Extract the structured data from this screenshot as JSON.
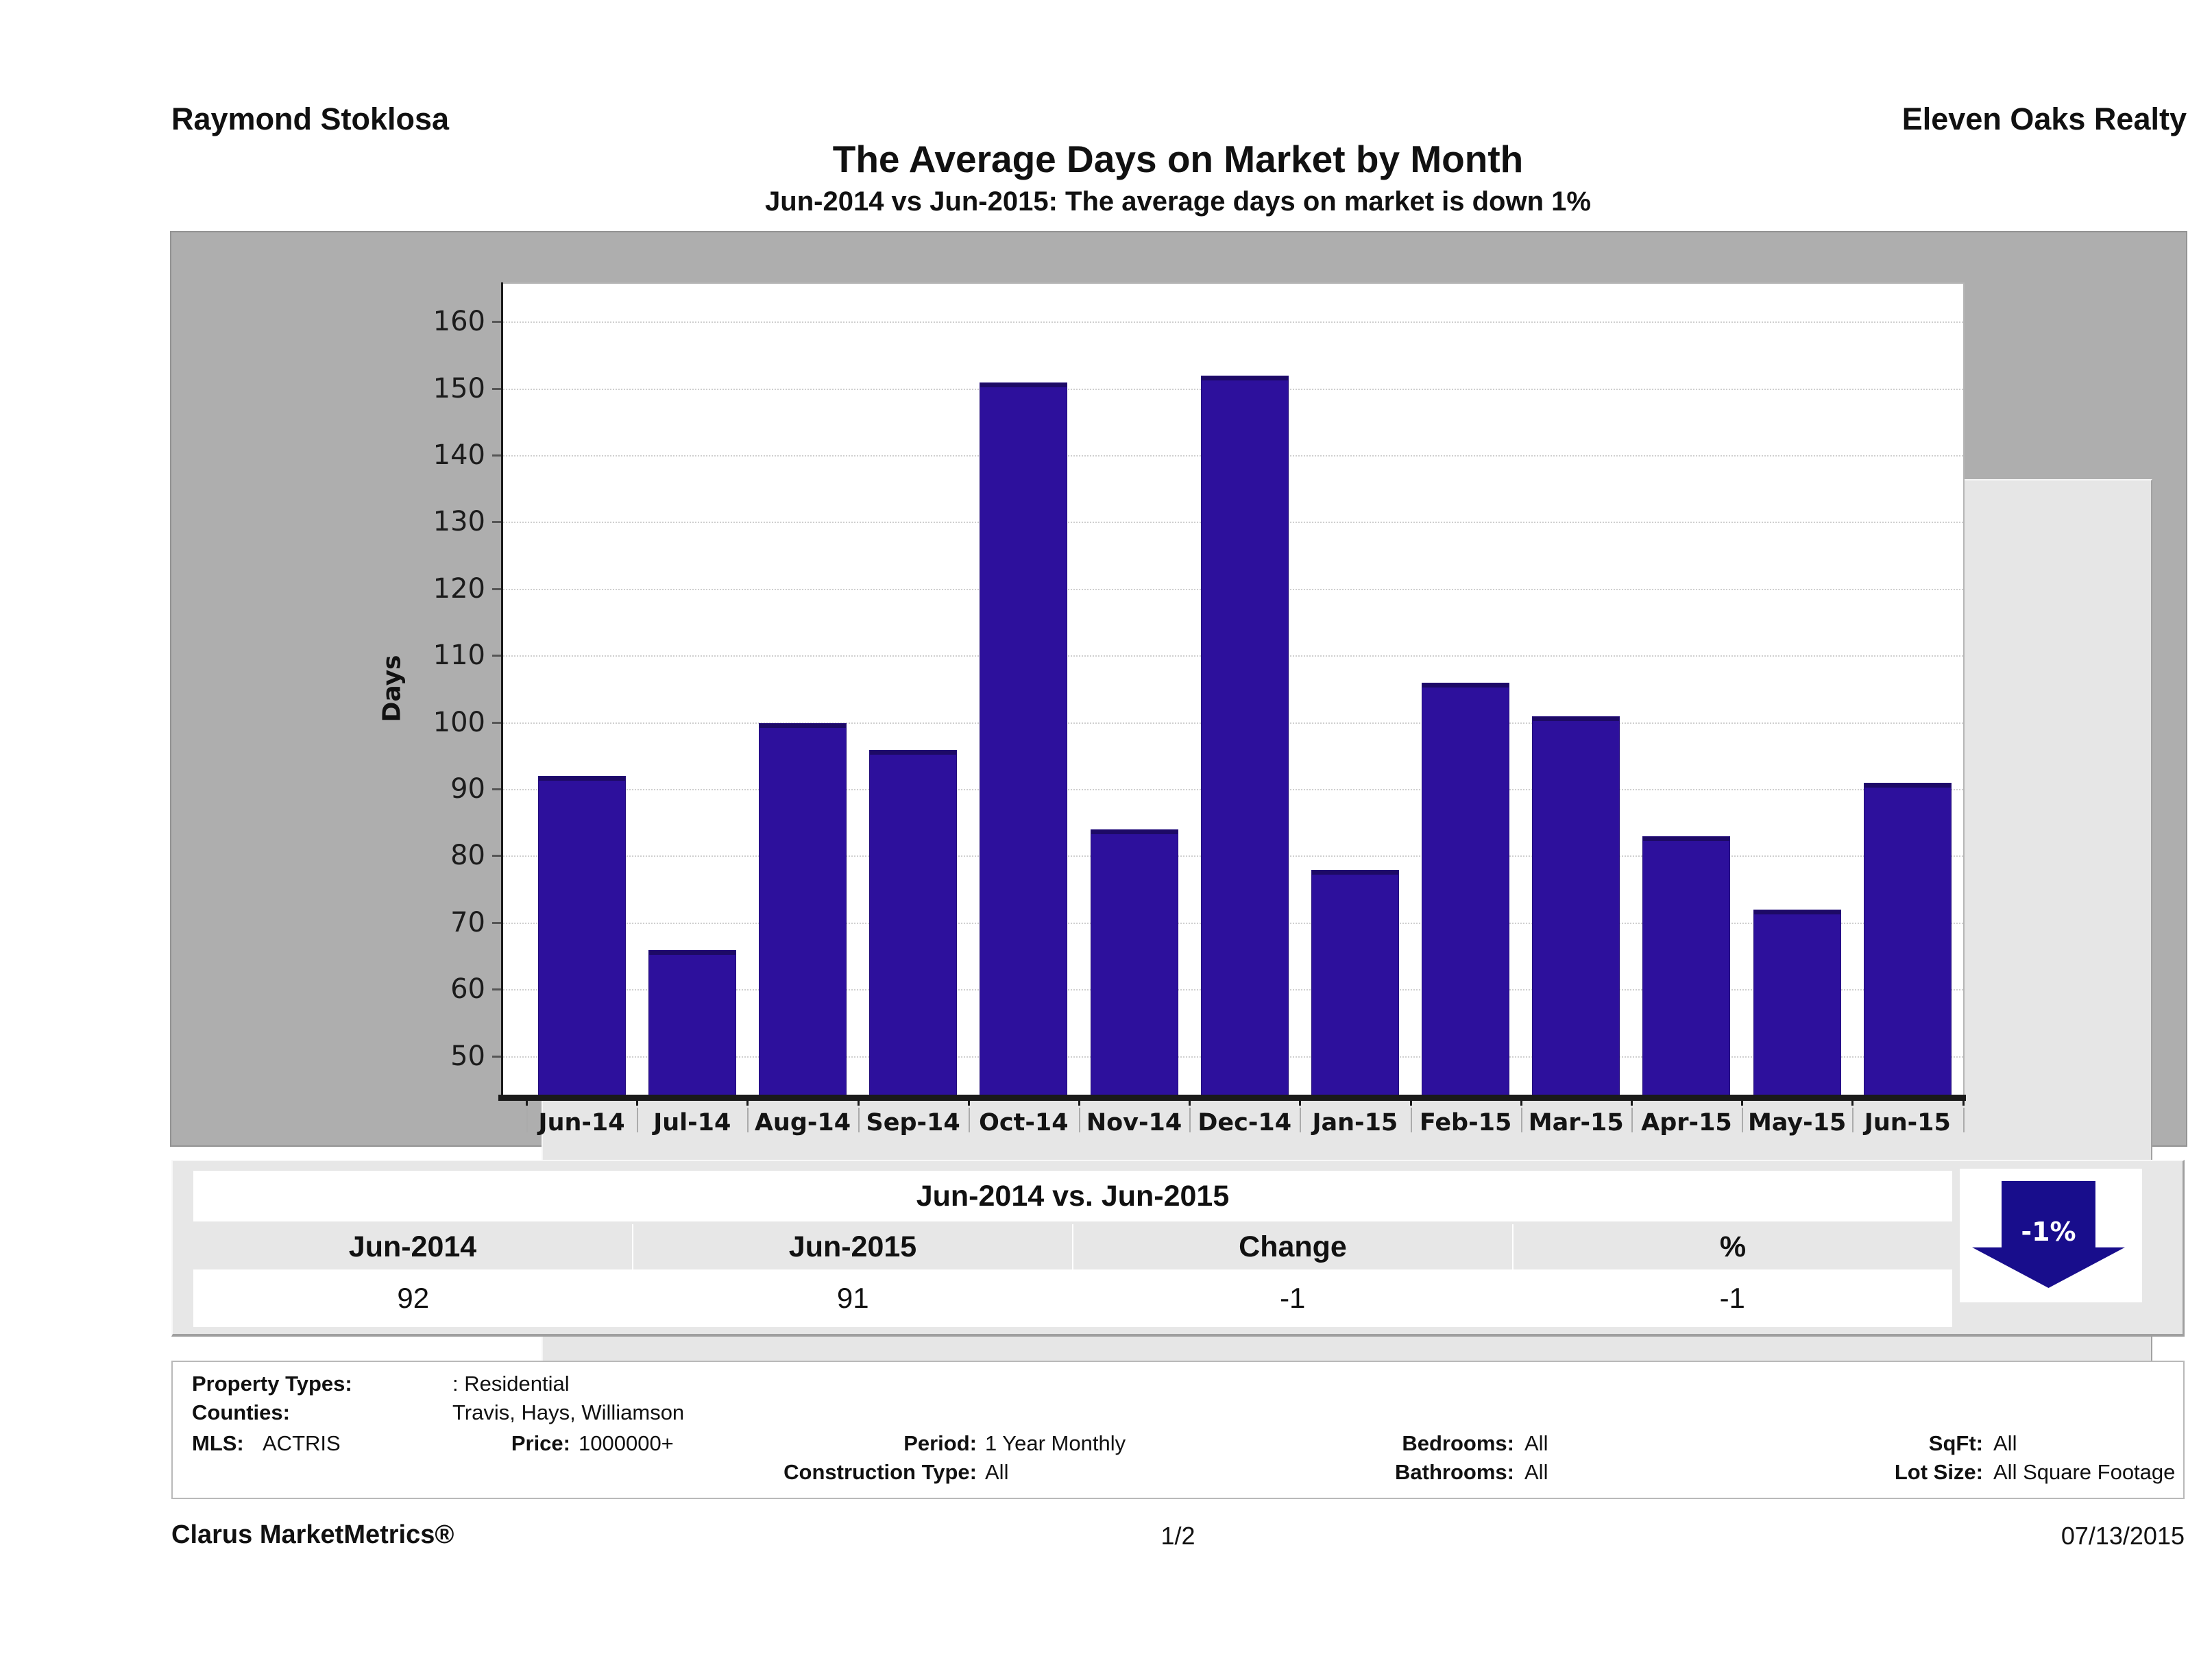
{
  "header": {
    "agent": "Raymond Stoklosa",
    "company": "Eleven Oaks Realty",
    "title": "The Average Days on Market by Month",
    "subtitle": "Jun-2014 vs Jun-2015: The average days on market is down 1%"
  },
  "chart_data": {
    "type": "bar",
    "title": "The Average Days on Market by Month",
    "categories": [
      "Jun-14",
      "Jul-14",
      "Aug-14",
      "Sep-14",
      "Oct-14",
      "Nov-14",
      "Dec-14",
      "Jan-15",
      "Feb-15",
      "Mar-15",
      "Apr-15",
      "May-15",
      "Jun-15"
    ],
    "values": [
      92,
      66,
      100,
      96,
      151,
      84,
      152,
      78,
      106,
      101,
      83,
      72,
      91
    ],
    "xlabel": "",
    "ylabel": "Days",
    "yticks": [
      50,
      60,
      70,
      80,
      90,
      100,
      110,
      120,
      130,
      140,
      150,
      160
    ],
    "ylim": [
      44,
      166
    ],
    "grid": true,
    "legend_position": "none",
    "bar_color": "#2d109c"
  },
  "summary": {
    "title": "Jun-2014 vs. Jun-2015",
    "columns": [
      "Jun-2014",
      "Jun-2015",
      "Change",
      "%"
    ],
    "values": [
      "92",
      "91",
      "-1",
      "-1"
    ],
    "arrow_label": "-1%",
    "arrow_direction": "down",
    "arrow_color": "#180d8c"
  },
  "criteria": {
    "property_types_label": "Property Types:",
    "property_types_value": ": Residential",
    "counties_label": "Counties:",
    "counties_value": "Travis, Hays, Williamson",
    "mls_label": "MLS:",
    "mls_value": "ACTRIS",
    "price_label": "Price:",
    "price_value": "1000000+",
    "period_label": "Period:",
    "period_value": "1 Year Monthly",
    "bedrooms_label": "Bedrooms:",
    "bedrooms_value": "All",
    "sqft_label": "SqFt:",
    "sqft_value": "All",
    "construction_label": "Construction Type:",
    "construction_value": "All",
    "bathrooms_label": "Bathrooms:",
    "bathrooms_value": "All",
    "lot_label": "Lot Size:",
    "lot_value": "All Square Footage"
  },
  "footer": {
    "brand": "Clarus MarketMetrics®",
    "page": "1/2",
    "date": "07/13/2015"
  }
}
